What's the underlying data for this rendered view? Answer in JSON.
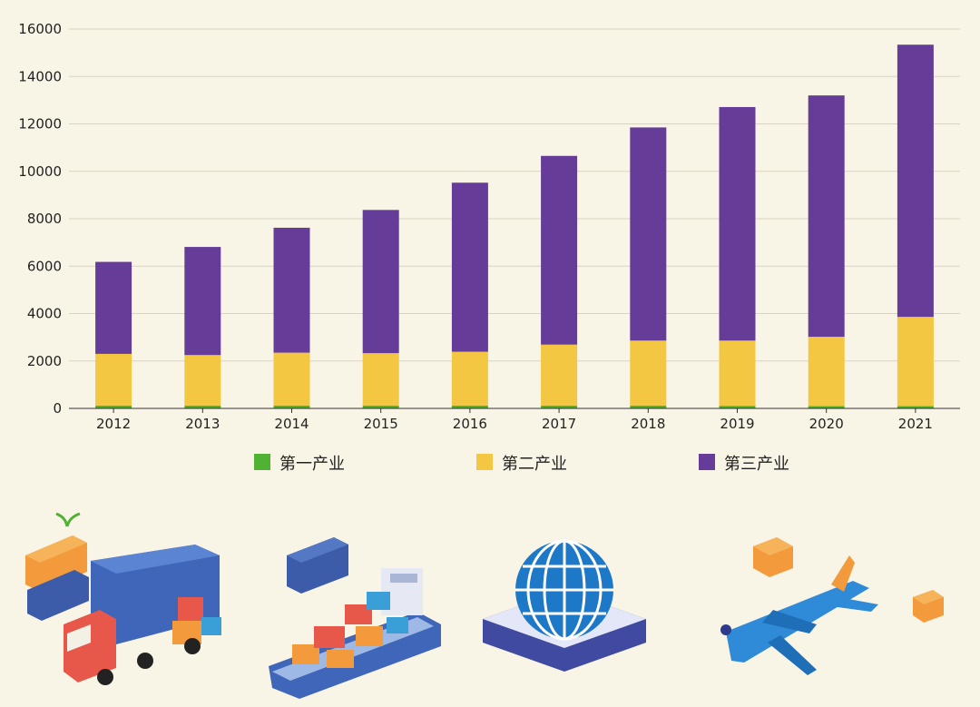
{
  "chart_data": {
    "type": "bar",
    "stacked": true,
    "categories": [
      "2012",
      "2013",
      "2014",
      "2015",
      "2016",
      "2017",
      "2018",
      "2019",
      "2020",
      "2021"
    ],
    "series": [
      {
        "name": "第一产业",
        "color": "#4fb233",
        "values": [
          120,
          120,
          120,
          120,
          120,
          120,
          120,
          110,
          100,
          100
        ]
      },
      {
        "name": "第二产业",
        "color": "#f3c742",
        "values": [
          2180,
          2130,
          2230,
          2210,
          2270,
          2570,
          2740,
          2750,
          2920,
          3760
        ]
      },
      {
        "name": "第三产业",
        "color": "#663c99",
        "values": [
          3880,
          4560,
          5270,
          6040,
          7130,
          7960,
          8990,
          9850,
          10180,
          11480
        ]
      }
    ],
    "ylim": [
      0,
      16000
    ],
    "yticks": [
      0,
      2000,
      4000,
      6000,
      8000,
      10000,
      12000,
      14000,
      16000
    ],
    "grid": true,
    "legend_position": "bottom"
  },
  "illustrations": [
    {
      "name": "truck-icon"
    },
    {
      "name": "cargo-ship-icon"
    },
    {
      "name": "globe-icon"
    },
    {
      "name": "airplane-icon"
    }
  ]
}
